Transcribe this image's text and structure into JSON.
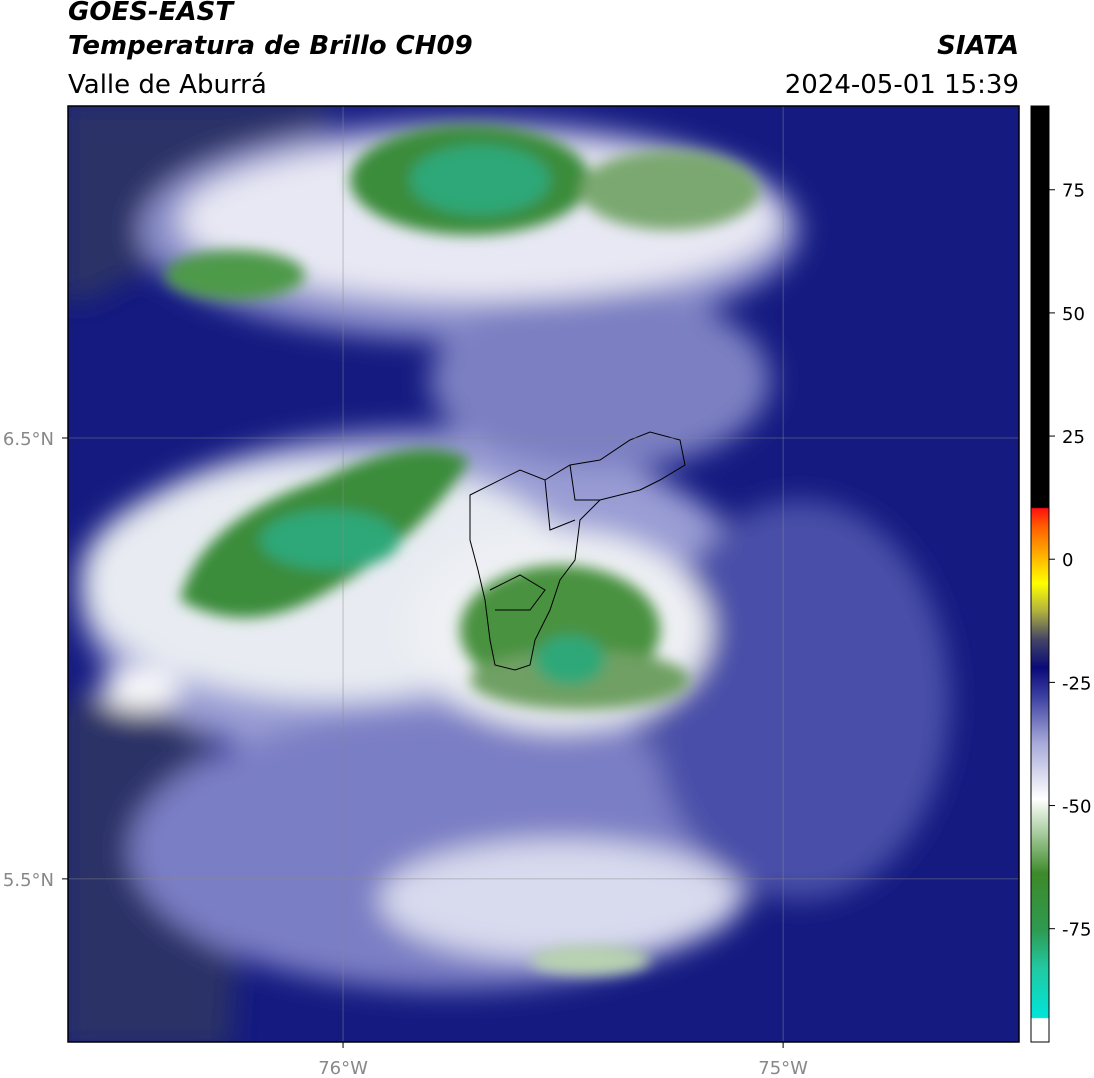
{
  "header": {
    "title": "GOES-EAST",
    "subtitle": "Temperatura de Brillo CH09",
    "region": "Valle de Aburrá",
    "agency": "SIATA",
    "timestamp": "2024-05-01 15:39"
  },
  "map": {
    "lon_range": [
      -76.625,
      -74.464
    ],
    "lat_range": [
      5.13,
      7.253
    ],
    "lat_ticks": [
      {
        "value": 6.5,
        "label": "6.5°N"
      },
      {
        "value": 5.5,
        "label": "5.5°N"
      }
    ],
    "lon_ticks": [
      {
        "value": -76,
        "label": "76°W"
      },
      {
        "value": -75,
        "label": "75°W"
      }
    ]
  },
  "colorbar": {
    "range": [
      -98,
      92
    ],
    "ticks": [
      75,
      50,
      25,
      0,
      -25,
      -50,
      -75
    ]
  }
}
